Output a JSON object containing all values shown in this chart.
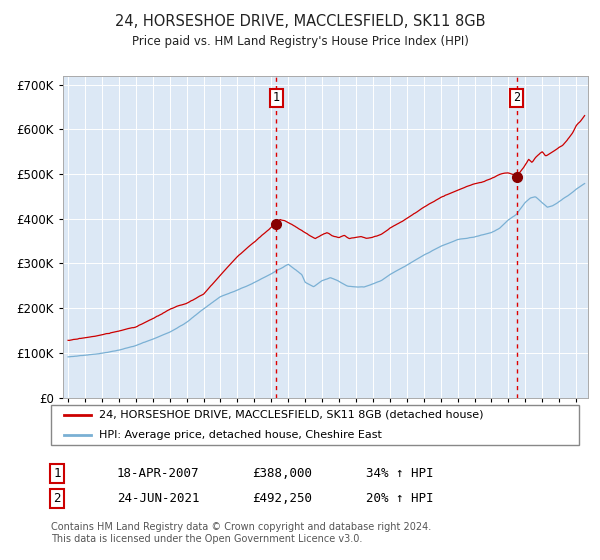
{
  "title1": "24, HORSESHOE DRIVE, MACCLESFIELD, SK11 8GB",
  "title2": "Price paid vs. HM Land Registry's House Price Index (HPI)",
  "legend_red": "24, HORSESHOE DRIVE, MACCLESFIELD, SK11 8GB (detached house)",
  "legend_blue": "HPI: Average price, detached house, Cheshire East",
  "footnote": "Contains HM Land Registry data © Crown copyright and database right 2024.\nThis data is licensed under the Open Government Licence v3.0.",
  "annotation1_date": "18-APR-2007",
  "annotation1_price": "£388,000",
  "annotation1_hpi": "34% ↑ HPI",
  "annotation2_date": "24-JUN-2021",
  "annotation2_price": "£492,250",
  "annotation2_hpi": "20% ↑ HPI",
  "sale1_year": 2007.3,
  "sale1_price": 388000,
  "sale2_year": 2021.48,
  "sale2_price": 492250,
  "ylim": [
    0,
    720000
  ],
  "xlim_start": 1994.7,
  "xlim_end": 2025.7,
  "bg_color": "#dce8f5",
  "grid_color": "#ffffff",
  "red_line_color": "#cc0000",
  "blue_line_color": "#7ab0d4",
  "dashed_red": "#dd0000",
  "sale_dot_color": "#880000",
  "yticks": [
    0,
    100000,
    200000,
    300000,
    400000,
    500000,
    600000,
    700000
  ],
  "xticks_start": 1995,
  "xticks_end": 2025
}
